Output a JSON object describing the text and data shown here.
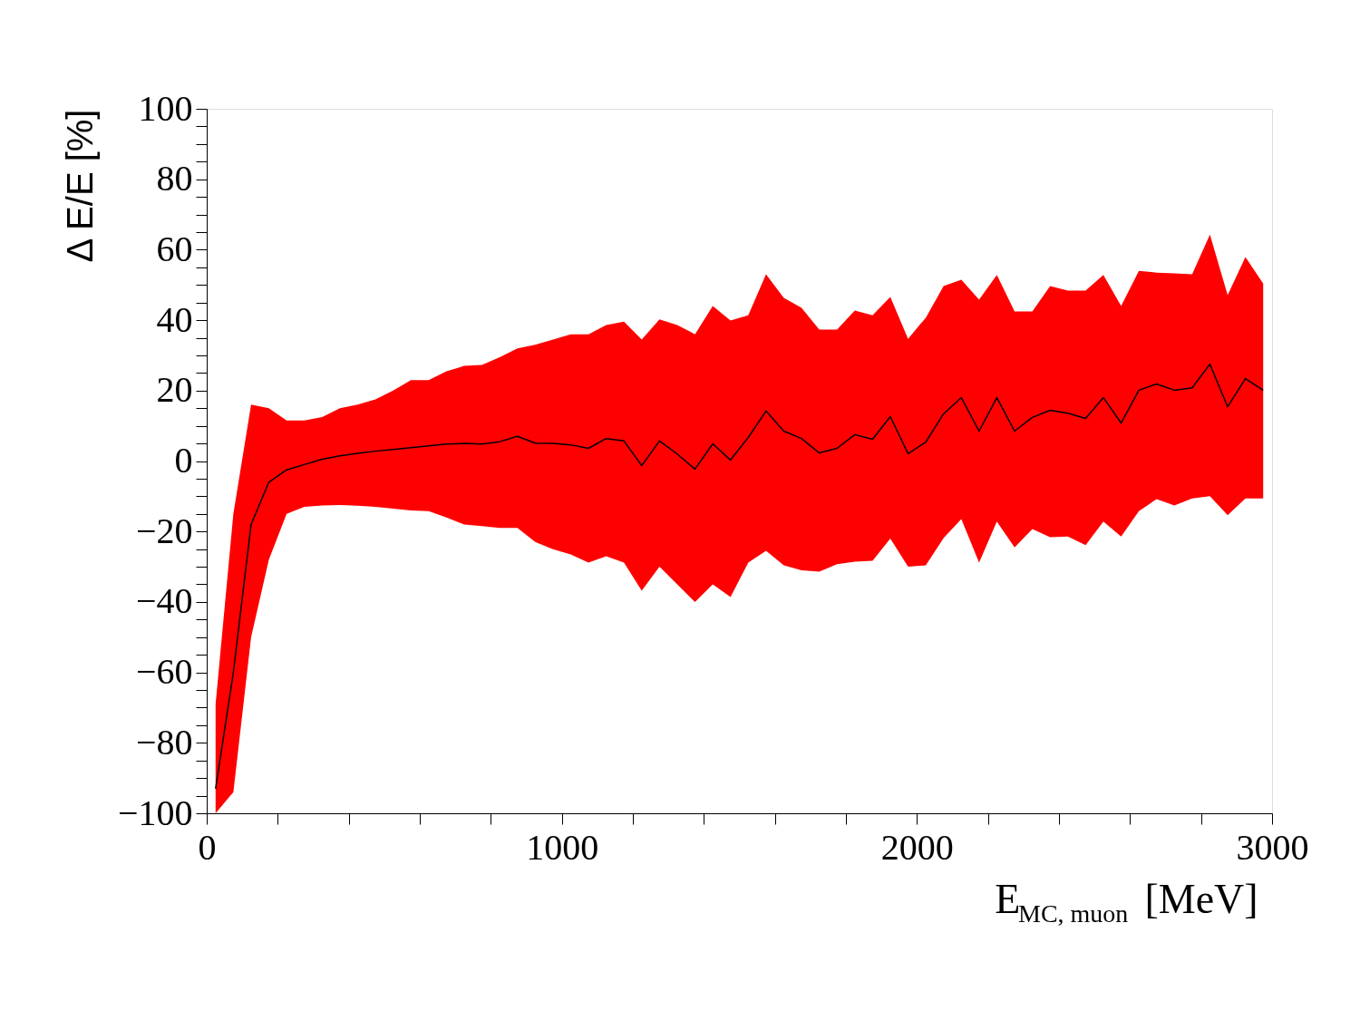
{
  "chart_data": {
    "type": "line",
    "xlabel": "E$_{MC, muon}$ [MeV]",
    "ylabel": "Δ E/E [%]",
    "x": [
      25,
      75,
      125,
      175,
      225,
      275,
      325,
      375,
      425,
      475,
      525,
      575,
      625,
      675,
      725,
      775,
      825,
      875,
      925,
      975,
      1025,
      1075,
      1125,
      1175,
      1225,
      1275,
      1325,
      1375,
      1425,
      1475,
      1525,
      1575,
      1625,
      1675,
      1725,
      1775,
      1825,
      1875,
      1925,
      1975,
      2025,
      2075,
      2125,
      2175,
      2225,
      2275,
      2325,
      2375,
      2425,
      2475,
      2525,
      2575,
      2625,
      2675,
      2725,
      2775,
      2825,
      2875,
      2925,
      2975
    ],
    "series": [
      {
        "color": "#000000",
        "values": [
          -93,
          -60,
          -18,
          -6,
          -2.5,
          -1,
          0.5,
          1.5,
          2.2,
          2.8,
          3.3,
          3.8,
          4.3,
          4.8,
          5,
          4.8,
          5.5,
          7,
          5.1,
          5,
          4.6,
          3.6,
          6.4,
          5.7,
          -1.3,
          5.7,
          2,
          -2.3,
          4.9,
          0.3,
          6.7,
          14.2,
          8.5,
          6.4,
          2.3,
          3.6,
          7.5,
          6.2,
          12.6,
          2.1,
          5.4,
          13.4,
          18,
          8.5,
          18,
          8.5,
          12.4,
          14.4,
          13.6,
          12.1,
          18,
          10.8,
          20.1,
          21.9,
          20.1,
          20.8,
          27.5,
          15.4,
          23.4,
          20.1
        ],
        "lower": [
          -100,
          -94,
          -50,
          -28,
          -15,
          -13,
          -12.6,
          -12.5,
          -12.7,
          -13,
          -13.5,
          -14,
          -14.2,
          -16,
          -18,
          -18.5,
          -19,
          -19,
          -23,
          -25,
          -26.5,
          -28.8,
          -27,
          -28.8,
          -36.8,
          -30,
          -35,
          -40,
          -35,
          -38.6,
          -28.8,
          -25.5,
          -29.6,
          -31,
          -31.4,
          -29.3,
          -28.6,
          -28.3,
          -22,
          -30,
          -29.6,
          -21.9,
          -16.5,
          -28.8,
          -17.2,
          -24.5,
          -19.3,
          -21.6,
          -21.4,
          -23.9,
          -17.2,
          -21.4,
          -14.2,
          -10.8,
          -12.6,
          -10.6,
          -10,
          -15.4,
          -10.6,
          -10.6
        ],
        "upper": [
          -69,
          -15,
          16,
          15,
          11.5,
          11.5,
          12.5,
          15,
          16,
          17.5,
          20,
          23,
          23,
          25.5,
          27,
          27.3,
          29.5,
          32,
          33,
          34.5,
          36,
          36,
          38.6,
          39.6,
          34.5,
          40.2,
          38.6,
          36,
          44,
          39.9,
          41.4,
          53,
          46.3,
          43.5,
          37.3,
          37.3,
          42.7,
          41.4,
          46.6,
          34.7,
          40.7,
          49.7,
          51.5,
          45.8,
          52.8,
          42.5,
          42.5,
          49.7,
          48.4,
          48.4,
          52.8,
          44,
          54,
          53.5,
          53.3,
          53,
          64.3,
          47.1,
          57.9,
          50.4
        ]
      }
    ],
    "xlim": [
      0,
      3000
    ],
    "xticks": [
      0,
      {
        "value": 200,
        "label": null
      },
      {
        "value": 400,
        "label": null
      },
      {
        "value": 600,
        "label": null
      },
      {
        "value": 800,
        "label": null
      },
      1000,
      {
        "value": 1200,
        "label": null
      },
      {
        "value": 1400,
        "label": null
      },
      {
        "value": 1600,
        "label": null
      },
      {
        "value": 1800,
        "label": null
      },
      2000,
      {
        "value": 2200,
        "label": null
      },
      {
        "value": 2400,
        "label": null
      },
      {
        "value": 2600,
        "label": null
      },
      {
        "value": 2800,
        "label": null
      },
      3000
    ],
    "ylim": [
      -100,
      100
    ],
    "yticks": [
      {
        "value": -100,
        "label": "−100"
      },
      {
        "value": -95,
        "label": null
      },
      {
        "value": -90,
        "label": null
      },
      {
        "value": -85,
        "label": null
      },
      {
        "value": -80,
        "label": "−80"
      },
      {
        "value": -75,
        "label": null
      },
      {
        "value": -70,
        "label": null
      },
      {
        "value": -65,
        "label": null
      },
      {
        "value": -60,
        "label": "−60"
      },
      {
        "value": -55,
        "label": null
      },
      {
        "value": -50,
        "label": null
      },
      {
        "value": -45,
        "label": null
      },
      {
        "value": -40,
        "label": "−40"
      },
      {
        "value": -35,
        "label": null
      },
      {
        "value": -30,
        "label": null
      },
      {
        "value": -25,
        "label": null
      },
      {
        "value": -20,
        "label": "−20"
      },
      {
        "value": -15,
        "label": null
      },
      {
        "value": -10,
        "label": null
      },
      {
        "value": -5,
        "label": null
      },
      0,
      {
        "value": 5,
        "label": null
      },
      {
        "value": 10,
        "label": null
      },
      {
        "value": 15,
        "label": null
      },
      20,
      {
        "value": 25,
        "label": null
      },
      {
        "value": 30,
        "label": null
      },
      {
        "value": 35,
        "label": null
      },
      40,
      {
        "value": 45,
        "label": null
      },
      {
        "value": 50,
        "label": null
      },
      {
        "value": 55,
        "label": null
      },
      60,
      {
        "value": 65,
        "label": null
      },
      {
        "value": 70,
        "label": null
      },
      {
        "value": 75,
        "label": null
      },
      80,
      {
        "value": 85,
        "label": null
      },
      {
        "value": 90,
        "label": null
      },
      {
        "value": 95,
        "label": null
      },
      100
    ],
    "grid": false,
    "marker": "none",
    "line_style": "solid"
  }
}
